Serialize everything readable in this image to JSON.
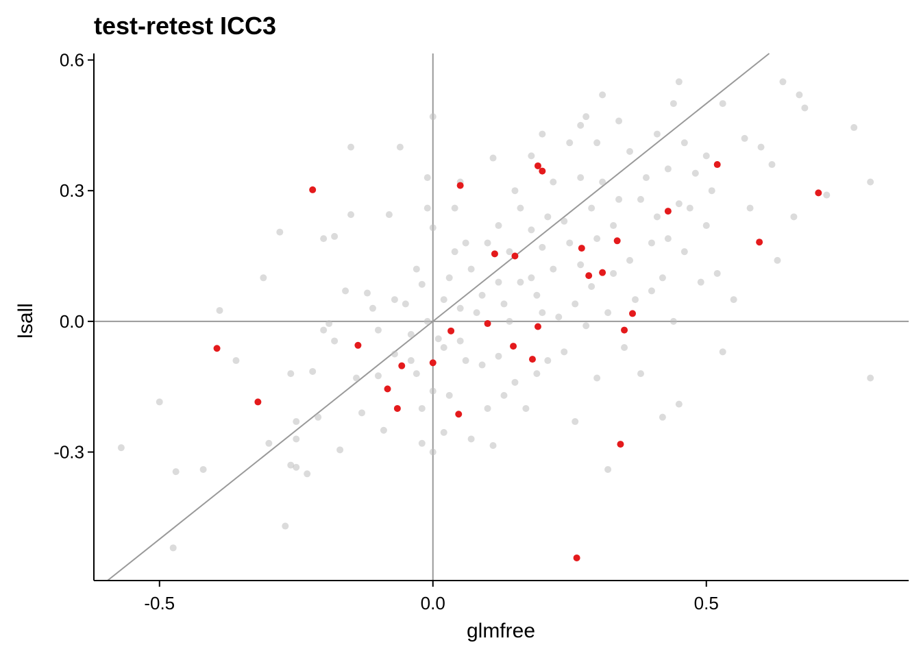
{
  "chart_data": {
    "type": "scatter",
    "title": "test-retest ICC3",
    "xlabel": "glmfree",
    "ylabel": "lsall",
    "xlim": [
      -0.62,
      0.87
    ],
    "ylim": [
      -0.595,
      0.615
    ],
    "xticks": [
      -0.5,
      0.0,
      0.5
    ],
    "yticks": [
      -0.3,
      0.0,
      0.3,
      0.6
    ],
    "xtick_labels": [
      "-0.5",
      "0.0",
      "0.5"
    ],
    "ytick_labels": [
      "-0.3",
      "0.0",
      "0.3",
      "0.6"
    ],
    "grid": false,
    "reference_lines": {
      "vertical_at_x": 0,
      "horizontal_at_y": 0,
      "identity": true
    },
    "colors": {
      "background_points": "#bdbdbd",
      "highlight_points": "#e41a1c",
      "reference_lines": "#999999"
    },
    "series": [
      {
        "values": [
          [
            -0.57,
            -0.29
          ],
          [
            -0.5,
            -0.185
          ],
          [
            -0.47,
            -0.345
          ],
          [
            -0.475,
            -0.52
          ],
          [
            -0.42,
            -0.34
          ],
          [
            -0.39,
            0.025
          ],
          [
            -0.36,
            -0.09
          ],
          [
            -0.31,
            0.1
          ],
          [
            -0.3,
            -0.28
          ],
          [
            -0.28,
            0.205
          ],
          [
            -0.27,
            -0.47
          ],
          [
            -0.26,
            -0.33
          ],
          [
            -0.26,
            -0.12
          ],
          [
            -0.25,
            -0.27
          ],
          [
            -0.25,
            -0.335
          ],
          [
            -0.25,
            -0.23
          ],
          [
            -0.23,
            -0.35
          ],
          [
            -0.22,
            -0.115
          ],
          [
            -0.21,
            -0.22
          ],
          [
            -0.2,
            -0.02
          ],
          [
            -0.2,
            0.19
          ],
          [
            -0.19,
            -0.005
          ],
          [
            -0.18,
            0.195
          ],
          [
            -0.18,
            -0.045
          ],
          [
            -0.17,
            -0.295
          ],
          [
            -0.16,
            0.07
          ],
          [
            -0.15,
            0.4
          ],
          [
            -0.15,
            0.245
          ],
          [
            -0.14,
            -0.13
          ],
          [
            -0.13,
            -0.21
          ],
          [
            -0.12,
            0.065
          ],
          [
            -0.11,
            0.03
          ],
          [
            -0.1,
            -0.125
          ],
          [
            -0.1,
            -0.02
          ],
          [
            -0.09,
            -0.25
          ],
          [
            -0.08,
            0.245
          ],
          [
            -0.07,
            0.05
          ],
          [
            -0.07,
            -0.075
          ],
          [
            -0.06,
            0.4
          ],
          [
            -0.05,
            0.04
          ],
          [
            -0.04,
            -0.03
          ],
          [
            -0.04,
            -0.09
          ],
          [
            -0.03,
            0.12
          ],
          [
            -0.03,
            -0.12
          ],
          [
            -0.02,
            0.085
          ],
          [
            -0.02,
            -0.2
          ],
          [
            -0.02,
            -0.28
          ],
          [
            -0.01,
            0.26
          ],
          [
            -0.01,
            0.0
          ],
          [
            0.0,
            0.215
          ],
          [
            -0.01,
            0.33
          ],
          [
            0.0,
            0.47
          ],
          [
            0.0,
            -0.3
          ],
          [
            0.0,
            -0.16
          ],
          [
            0.01,
            -0.04
          ],
          [
            0.02,
            0.05
          ],
          [
            0.02,
            -0.06
          ],
          [
            0.02,
            -0.255
          ],
          [
            0.03,
            0.1
          ],
          [
            0.03,
            -0.17
          ],
          [
            0.04,
            0.16
          ],
          [
            0.04,
            0.26
          ],
          [
            0.05,
            0.03
          ],
          [
            0.05,
            -0.045
          ],
          [
            0.05,
            0.32
          ],
          [
            0.06,
            0.18
          ],
          [
            0.06,
            -0.09
          ],
          [
            0.07,
            0.12
          ],
          [
            0.07,
            -0.27
          ],
          [
            0.08,
            0.02
          ],
          [
            0.09,
            -0.1
          ],
          [
            0.09,
            0.06
          ],
          [
            0.1,
            0.18
          ],
          [
            0.1,
            -0.2
          ],
          [
            0.11,
            0.375
          ],
          [
            0.11,
            -0.285
          ],
          [
            0.12,
            0.09
          ],
          [
            0.12,
            0.22
          ],
          [
            0.12,
            -0.08
          ],
          [
            0.13,
            0.04
          ],
          [
            0.13,
            -0.17
          ],
          [
            0.14,
            0.16
          ],
          [
            0.14,
            0.0
          ],
          [
            0.15,
            0.3
          ],
          [
            0.15,
            -0.14
          ],
          [
            0.16,
            0.26
          ],
          [
            0.16,
            0.09
          ],
          [
            0.17,
            -0.2
          ],
          [
            0.18,
            0.38
          ],
          [
            0.18,
            0.21
          ],
          [
            0.18,
            0.1
          ],
          [
            0.19,
            0.06
          ],
          [
            0.19,
            -0.12
          ],
          [
            0.2,
            0.43
          ],
          [
            0.2,
            0.17
          ],
          [
            0.2,
            0.02
          ],
          [
            0.21,
            0.24
          ],
          [
            0.21,
            -0.09
          ],
          [
            0.22,
            0.12
          ],
          [
            0.22,
            0.32
          ],
          [
            0.23,
            0.01
          ],
          [
            0.24,
            0.23
          ],
          [
            0.24,
            -0.07
          ],
          [
            0.25,
            0.41
          ],
          [
            0.25,
            0.18
          ],
          [
            0.26,
            0.04
          ],
          [
            0.26,
            -0.23
          ],
          [
            0.27,
            0.33
          ],
          [
            0.27,
            0.13
          ],
          [
            0.28,
            -0.01
          ],
          [
            0.28,
            0.47
          ],
          [
            0.29,
            0.26
          ],
          [
            0.29,
            0.08
          ],
          [
            0.3,
            0.41
          ],
          [
            0.3,
            0.19
          ],
          [
            0.3,
            -0.13
          ],
          [
            0.31,
            0.52
          ],
          [
            0.31,
            0.32
          ],
          [
            0.32,
            0.02
          ],
          [
            0.32,
            -0.34
          ],
          [
            0.33,
            0.22
          ],
          [
            0.33,
            0.11
          ],
          [
            0.34,
            0.46
          ],
          [
            0.34,
            0.28
          ],
          [
            0.35,
            -0.06
          ],
          [
            0.36,
            0.39
          ],
          [
            0.36,
            0.14
          ],
          [
            0.37,
            0.05
          ],
          [
            0.38,
            -0.12
          ],
          [
            0.38,
            0.28
          ],
          [
            0.39,
            0.33
          ],
          [
            0.4,
            0.18
          ],
          [
            0.4,
            0.07
          ],
          [
            0.41,
            0.43
          ],
          [
            0.41,
            0.24
          ],
          [
            0.42,
            -0.22
          ],
          [
            0.42,
            0.1
          ],
          [
            0.43,
            0.35
          ],
          [
            0.43,
            0.19
          ],
          [
            0.44,
            0.5
          ],
          [
            0.44,
            0.0
          ],
          [
            0.45,
            0.27
          ],
          [
            0.45,
            -0.19
          ],
          [
            0.46,
            0.41
          ],
          [
            0.46,
            0.16
          ],
          [
            0.47,
            0.26
          ],
          [
            0.48,
            0.34
          ],
          [
            0.49,
            0.09
          ],
          [
            0.5,
            0.22
          ],
          [
            0.5,
            0.38
          ],
          [
            0.51,
            0.3
          ],
          [
            0.52,
            0.11
          ],
          [
            0.53,
            0.5
          ],
          [
            0.53,
            -0.07
          ],
          [
            0.55,
            0.05
          ],
          [
            0.57,
            0.42
          ],
          [
            0.58,
            0.26
          ],
          [
            0.6,
            0.4
          ],
          [
            0.62,
            0.36
          ],
          [
            0.63,
            0.14
          ],
          [
            0.64,
            0.55
          ],
          [
            0.66,
            0.24
          ],
          [
            0.67,
            0.52
          ],
          [
            0.68,
            0.49
          ],
          [
            0.72,
            0.29
          ],
          [
            0.77,
            0.445
          ],
          [
            0.8,
            0.32
          ],
          [
            0.8,
            -0.13
          ],
          [
            0.45,
            0.55
          ],
          [
            0.27,
            0.45
          ]
        ]
      },
      {
        "values": [
          [
            -0.395,
            -0.062
          ],
          [
            -0.32,
            -0.185
          ],
          [
            -0.22,
            0.302
          ],
          [
            -0.137,
            -0.055
          ],
          [
            -0.083,
            -0.155
          ],
          [
            -0.065,
            -0.2
          ],
          [
            -0.057,
            -0.102
          ],
          [
            0.0,
            -0.095
          ],
          [
            0.033,
            -0.022
          ],
          [
            0.047,
            -0.213
          ],
          [
            0.05,
            0.312
          ],
          [
            0.1,
            -0.005
          ],
          [
            0.113,
            0.155
          ],
          [
            0.147,
            -0.057
          ],
          [
            0.15,
            0.15
          ],
          [
            0.182,
            -0.087
          ],
          [
            0.192,
            -0.012
          ],
          [
            0.192,
            0.357
          ],
          [
            0.2,
            0.345
          ],
          [
            0.263,
            -0.543
          ],
          [
            0.272,
            0.168
          ],
          [
            0.285,
            0.105
          ],
          [
            0.31,
            0.112
          ],
          [
            0.337,
            0.185
          ],
          [
            0.343,
            -0.282
          ],
          [
            0.35,
            -0.02
          ],
          [
            0.365,
            0.018
          ],
          [
            0.43,
            0.253
          ],
          [
            0.52,
            0.36
          ],
          [
            0.597,
            0.182
          ],
          [
            0.705,
            0.295
          ]
        ]
      }
    ]
  }
}
